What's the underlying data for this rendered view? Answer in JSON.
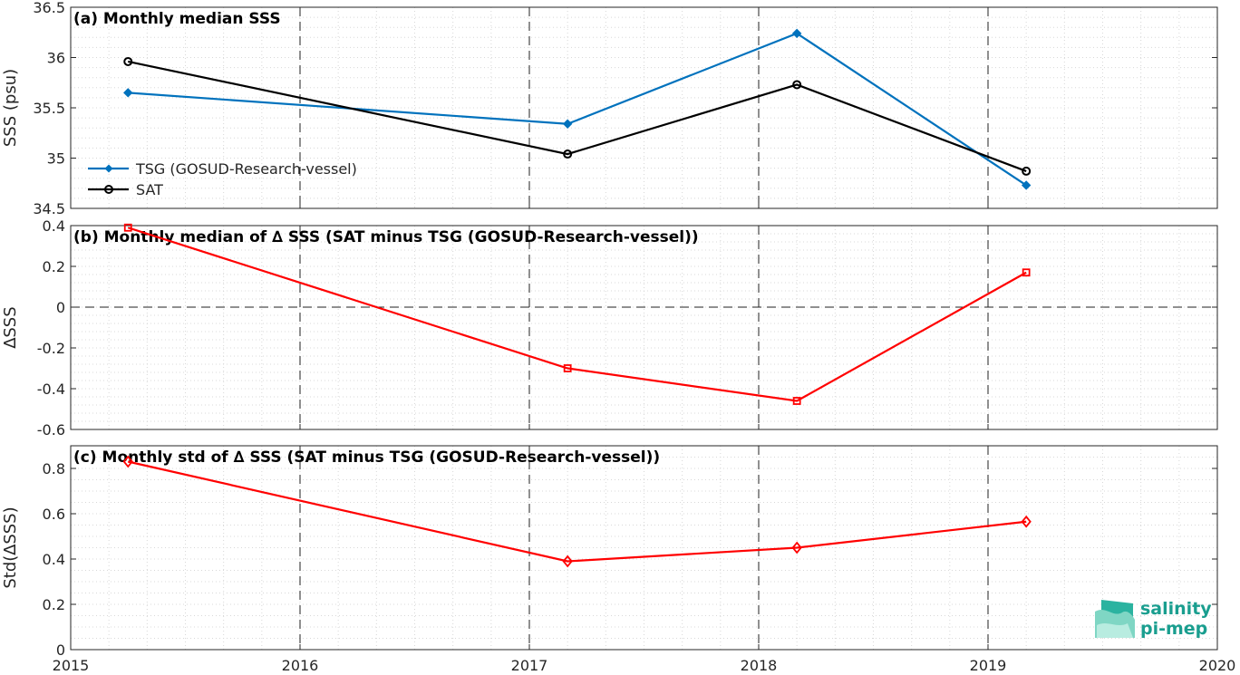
{
  "chart_data": [
    {
      "type": "line",
      "title": "(a) Monthly median SSS",
      "ylabel": "SSS (psu)",
      "x": [
        "2015-04",
        "2017-03",
        "2018-03",
        "2019-03"
      ],
      "xlim": [
        "2015",
        "2020"
      ],
      "ylim": [
        34.5,
        36.5
      ],
      "yticks": [
        "34.5",
        "35",
        "35.5",
        "36",
        "36.5"
      ],
      "grid": "on",
      "legend_position": "lower-left",
      "series": [
        {
          "name": "TSG (GOSUD-Research-vessel)",
          "color": "#0072bd",
          "marker": "filled-diamond",
          "values": [
            35.65,
            35.34,
            36.24,
            34.73
          ]
        },
        {
          "name": "SAT",
          "color": "#000000",
          "marker": "circle",
          "values": [
            35.96,
            35.04,
            35.73,
            34.87
          ]
        }
      ]
    },
    {
      "type": "line",
      "title": "(b) Monthly median of ∆ SSS (SAT minus TSG (GOSUD-Research-vessel))",
      "ylabel": "∆SSS",
      "x": [
        "2015-04",
        "2017-03",
        "2018-03",
        "2019-03"
      ],
      "xlim": [
        "2015",
        "2020"
      ],
      "ylim": [
        -0.6,
        0.4
      ],
      "yticks": [
        "-0.6",
        "-0.4",
        "-0.2",
        "0",
        "0.2",
        "0.4"
      ],
      "grid": "on",
      "zero_line": "dashed",
      "series": [
        {
          "color": "#ff0000",
          "marker": "square",
          "values": [
            0.39,
            -0.3,
            -0.46,
            0.17
          ]
        }
      ]
    },
    {
      "type": "line",
      "title": "(c) Monthly std of ∆ SSS (SAT minus TSG (GOSUD-Research-vessel))",
      "ylabel": "Std(∆SSS)",
      "x": [
        "2015-04",
        "2017-03",
        "2018-03",
        "2019-03"
      ],
      "xlim": [
        "2015",
        "2020"
      ],
      "ylim": [
        0,
        0.9
      ],
      "yticks": [
        "0",
        "0.2",
        "0.4",
        "0.6",
        "0.8"
      ],
      "xticks": [
        "2015",
        "2016",
        "2017",
        "2018",
        "2019",
        "2020"
      ],
      "grid": "on",
      "series": [
        {
          "color": "#ff0000",
          "marker": "diamond",
          "values": [
            0.83,
            0.39,
            0.45,
            0.565
          ]
        }
      ]
    }
  ],
  "year_dividers": [
    "2016",
    "2017",
    "2018",
    "2019"
  ],
  "logo": {
    "line1": "salinity",
    "line2": "pi-mep"
  }
}
